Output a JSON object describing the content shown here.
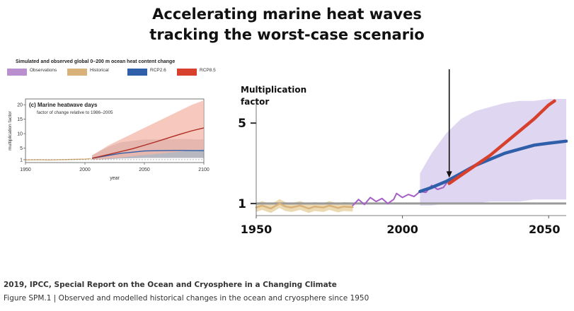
{
  "title": {
    "line1": "Accelerating marine heat waves",
    "line2": "tracking the worst-case scenario"
  },
  "inset": {
    "heading": "Simulated and observed global 0–200 m ocean heat content change",
    "legend": [
      {
        "label": "Observations",
        "color": "#b98fcf"
      },
      {
        "label": "Historical",
        "color": "#d9b27a"
      },
      {
        "label": "RCP2.6",
        "color": "#2f5fa8"
      },
      {
        "label": "RCP8.5",
        "color": "#d8402e"
      }
    ]
  },
  "chart_data": [
    {
      "type": "line",
      "panel_label": "(c)",
      "title": "Marine heatwave days",
      "subtitle": "factor of change relative to 1986–2005",
      "xlabel": "year",
      "ylabel": "multiplication factor",
      "xlim": [
        1950,
        2100
      ],
      "ylim": [
        0,
        22
      ],
      "x_ticks": [
        1950,
        2000,
        2050,
        2100
      ],
      "y_ticks": [
        1,
        5,
        10,
        15,
        20
      ],
      "series": [
        {
          "name": "Historical",
          "color": "#d9b27a",
          "x": [
            1950,
            1960,
            1970,
            1980,
            1990,
            2000,
            2005
          ],
          "y": [
            0.9,
            1.0,
            0.9,
            1.0,
            1.1,
            1.2,
            1.4
          ]
        },
        {
          "name": "RCP2.6",
          "color": "#2f5fa8",
          "x": [
            2006,
            2020,
            2030,
            2040,
            2050,
            2060,
            2080,
            2100
          ],
          "y": [
            1.5,
            2.5,
            3.2,
            3.6,
            4.0,
            4.1,
            4.2,
            4.1
          ],
          "band_lo": [
            1.0,
            1.2,
            1.4,
            1.5,
            1.6,
            1.6,
            1.6,
            1.6
          ],
          "band_hi": [
            2.5,
            5.5,
            7.0,
            7.5,
            8.0,
            8.0,
            8.2,
            8.0
          ]
        },
        {
          "name": "RCP8.5",
          "color": "#b02a22",
          "x": [
            2006,
            2020,
            2030,
            2040,
            2050,
            2060,
            2070,
            2080,
            2090,
            2100
          ],
          "y": [
            1.5,
            2.8,
            3.8,
            4.8,
            6.0,
            7.2,
            8.5,
            9.8,
            11.0,
            12.0
          ],
          "band_lo": [
            1.0,
            1.4,
            1.8,
            2.2,
            2.6,
            3.0,
            3.4,
            3.8,
            4.2,
            4.6
          ],
          "band_hi": [
            2.5,
            6.0,
            8.0,
            10.0,
            12.0,
            14.0,
            16.0,
            18.0,
            20.0,
            21.5
          ]
        }
      ]
    },
    {
      "type": "line",
      "title": "",
      "ylabel": "Multiplication factor",
      "xlim": [
        1950,
        2056
      ],
      "ylim": [
        0.4,
        6.2
      ],
      "x_ticks": [
        1950,
        2000,
        2050
      ],
      "y_ticks": [
        1,
        5
      ],
      "annotation": {
        "type": "arrow",
        "x": 2016
      },
      "series": [
        {
          "name": "Historical",
          "color": "#d9b27a",
          "x": [
            1950,
            1952,
            1955,
            1958,
            1960,
            1962,
            1965,
            1968,
            1970,
            1973,
            1975,
            1978,
            1980,
            1983
          ],
          "y": [
            0.8,
            0.9,
            0.75,
            1.0,
            0.85,
            0.8,
            0.9,
            0.75,
            0.85,
            0.8,
            0.9,
            0.78,
            0.85,
            0.82
          ]
        },
        {
          "name": "Observations",
          "color": "#a65fc4",
          "x": [
            1983,
            1985,
            1987,
            1989,
            1991,
            1993,
            1995,
            1997,
            1998,
            2000,
            2002,
            2004,
            2006,
            2008,
            2010,
            2012,
            2014,
            2016
          ],
          "y": [
            0.9,
            1.2,
            0.95,
            1.3,
            1.1,
            1.25,
            1.0,
            1.2,
            1.5,
            1.3,
            1.45,
            1.35,
            1.6,
            1.55,
            1.9,
            1.7,
            1.8,
            2.2
          ]
        },
        {
          "name": "RCP2.6",
          "color": "#2f5fa8",
          "x": [
            2006,
            2010,
            2015,
            2020,
            2025,
            2030,
            2035,
            2040,
            2045,
            2050,
            2056
          ],
          "y": [
            1.6,
            1.8,
            2.1,
            2.5,
            2.9,
            3.2,
            3.5,
            3.7,
            3.9,
            4.0,
            4.1
          ]
        },
        {
          "name": "RCP8.5",
          "color": "#d8402e",
          "x": [
            2016,
            2020,
            2025,
            2030,
            2035,
            2040,
            2045,
            2050,
            2052
          ],
          "y": [
            2.0,
            2.4,
            2.9,
            3.4,
            4.0,
            4.6,
            5.2,
            5.9,
            6.1
          ]
        }
      ],
      "bands": [
        {
          "x": [
            2006,
            2010,
            2015,
            2020,
            2025,
            2030,
            2035,
            2040,
            2045,
            2050,
            2056
          ],
          "lo": [
            0.9,
            0.9,
            1.0,
            1.0,
            1.0,
            1.1,
            1.1,
            1.1,
            1.2,
            1.2,
            1.2
          ],
          "hi": [
            2.5,
            3.5,
            4.5,
            5.2,
            5.6,
            5.8,
            6.0,
            6.1,
            6.1,
            6.2,
            6.2
          ],
          "color": "#d9cfee"
        }
      ],
      "reference_line": 1
    }
  ],
  "footer": {
    "citation": "2019, IPCC, Special Report on the Ocean and Cryosphere in a Changing Climate",
    "figure_caption": "Figure SPM.1 | Observed and modelled historical changes in the ocean and cryosphere since 1950"
  }
}
